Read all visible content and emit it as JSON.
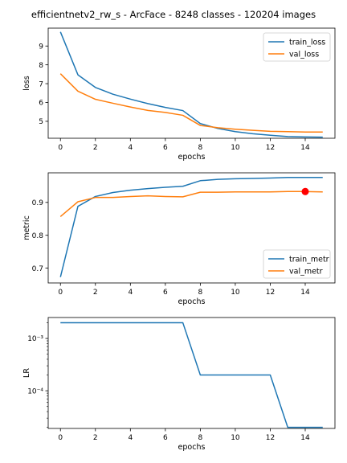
{
  "figure": {
    "title": "efficientnetv2_rw_s - ArcFace - 8248 classes - 120204 images",
    "colors": {
      "blue": "#1f77b4",
      "orange": "#ff7f0e",
      "marker": "#ff0000"
    }
  },
  "chart_data": [
    {
      "type": "line",
      "xlabel": "epochs",
      "ylabel": "loss",
      "xlim": [
        -0.7,
        15.7
      ],
      "ylim": [
        4.1,
        9.95
      ],
      "xticks": [
        0,
        2,
        4,
        6,
        8,
        10,
        12,
        14
      ],
      "yticks": [
        5,
        6,
        7,
        8,
        9
      ],
      "legend": "top-right",
      "x": [
        0,
        1,
        2,
        3,
        4,
        5,
        6,
        7,
        8,
        9,
        10,
        11,
        12,
        13,
        14,
        15
      ],
      "series": [
        {
          "name": "train_loss",
          "color": "#1f77b4",
          "values": [
            9.75,
            7.47,
            6.8,
            6.44,
            6.18,
            5.94,
            5.74,
            5.57,
            4.88,
            4.62,
            4.45,
            4.34,
            4.26,
            4.19,
            4.17,
            4.16
          ]
        },
        {
          "name": "val_loss",
          "color": "#ff7f0e",
          "values": [
            7.53,
            6.6,
            6.17,
            5.96,
            5.76,
            5.58,
            5.47,
            5.32,
            4.78,
            4.66,
            4.58,
            4.52,
            4.47,
            4.45,
            4.43,
            4.43
          ]
        }
      ]
    },
    {
      "type": "line",
      "xlabel": "epochs",
      "ylabel": "metric",
      "xlim": [
        -0.7,
        15.7
      ],
      "ylim": [
        0.655,
        0.99
      ],
      "xticks": [
        0,
        2,
        4,
        6,
        8,
        10,
        12,
        14
      ],
      "yticks": [
        0.7,
        0.8,
        0.9
      ],
      "ytick_labels": [
        "0.7",
        "0.8",
        "0.9"
      ],
      "legend": "bottom-right",
      "x": [
        0,
        1,
        2,
        3,
        4,
        5,
        6,
        7,
        8,
        9,
        10,
        11,
        12,
        13,
        14,
        15
      ],
      "series": [
        {
          "name": "train_metr",
          "color": "#1f77b4",
          "values": [
            0.673,
            0.888,
            0.918,
            0.93,
            0.937,
            0.942,
            0.946,
            0.949,
            0.966,
            0.97,
            0.972,
            0.973,
            0.974,
            0.976,
            0.976,
            0.976
          ]
        },
        {
          "name": "val_metr",
          "color": "#ff7f0e",
          "values": [
            0.857,
            0.902,
            0.915,
            0.915,
            0.918,
            0.92,
            0.918,
            0.917,
            0.931,
            0.931,
            0.932,
            0.932,
            0.932,
            0.933,
            0.933,
            0.932
          ]
        }
      ],
      "best_marker": {
        "x": 14,
        "y": 0.933,
        "color": "#ff0000"
      }
    },
    {
      "type": "line",
      "xlabel": "epochs",
      "ylabel": "LR",
      "yscale": "log",
      "xlim": [
        -0.7,
        15.7
      ],
      "ylim_log10": [
        -4.72,
        -2.6
      ],
      "xticks": [
        0,
        2,
        4,
        6,
        8,
        10,
        12,
        14
      ],
      "yticks_log10": [
        -3,
        -4
      ],
      "ytick_labels": [
        "10⁻³",
        "10⁻⁴"
      ],
      "x": [
        0,
        1,
        2,
        3,
        4,
        5,
        6,
        7,
        8,
        9,
        10,
        11,
        12,
        13,
        14,
        15
      ],
      "series": [
        {
          "color": "#1f77b4",
          "values": [
            0.002,
            0.002,
            0.002,
            0.002,
            0.002,
            0.002,
            0.002,
            0.002,
            0.0002,
            0.0002,
            0.0002,
            0.0002,
            0.0002,
            2e-05,
            2e-05,
            2e-05
          ]
        }
      ]
    }
  ]
}
